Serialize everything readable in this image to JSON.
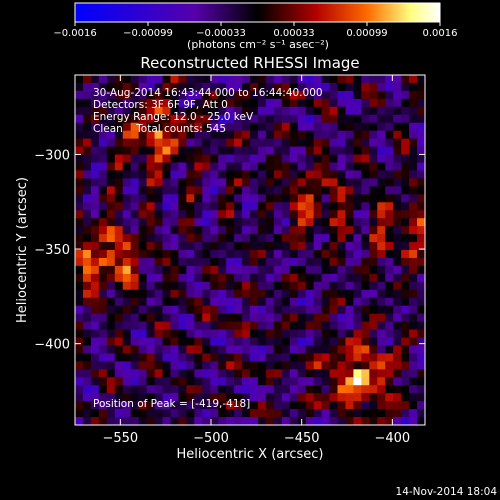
{
  "chart_data": {
    "type": "heatmap",
    "title": "Reconstructed RHESSI Image",
    "xlabel": "Heliocentric X (arcsec)",
    "ylabel": "Heliocentric Y (arcsec)",
    "xlim": [
      -575,
      -382
    ],
    "ylim": [
      -443,
      -258
    ],
    "x_ticks": [
      -550,
      -500,
      -450,
      -400
    ],
    "x_tick_labels": [
      "−550",
      "−500",
      "−450",
      "−400"
    ],
    "y_ticks": [
      -300,
      -350,
      -400
    ],
    "y_tick_labels": [
      "−300",
      "−350",
      "−400"
    ],
    "colorbar": {
      "range": [
        -0.0016,
        0.0016
      ],
      "ticks": [
        "−0.0016",
        "−0.00099",
        "−0.00033",
        "0.00033",
        "0.00099",
        "0.0016"
      ],
      "unit_label": "(photons cm⁻² s⁻¹ asec⁻²)",
      "colormap": [
        "#0000ff",
        "#5500aa",
        "#000000",
        "#b20000",
        "#ff6a00",
        "#ffff80",
        "#ffffff"
      ]
    },
    "annotations": {
      "time_range": "30-Aug-2014 16:43:44.000 to 16:44:40.000",
      "detectors": "Detectors: 3F 6F 9F, Att 0",
      "energy": "Energy Range: 12.0 - 25.0 keV",
      "clean": "Clean    Total counts: 545",
      "peak": "Position of Peak = [-419,-418]"
    },
    "peak_position": [
      -419,
      -418
    ],
    "bright_sources": [
      {
        "x": -418,
        "y": -418,
        "strength": 1.0
      },
      {
        "x": -557,
        "y": -355,
        "strength": 0.85
      },
      {
        "x": -530,
        "y": -290,
        "strength": 0.75
      },
      {
        "x": -443,
        "y": -325,
        "strength": 0.55
      },
      {
        "x": -395,
        "y": -340,
        "strength": 0.5
      }
    ]
  },
  "footer_timestamp": "14-Nov-2014 18:04"
}
